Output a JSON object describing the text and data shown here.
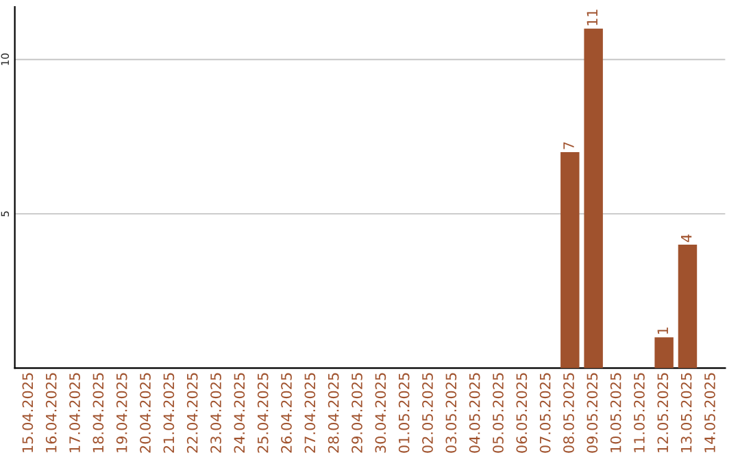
{
  "chart_data": {
    "type": "bar",
    "categories": [
      "15.04.2025",
      "16.04.2025",
      "17.04.2025",
      "18.04.2025",
      "19.04.2025",
      "20.04.2025",
      "21.04.2025",
      "22.04.2025",
      "23.04.2025",
      "24.04.2025",
      "25.04.2025",
      "26.04.2025",
      "27.04.2025",
      "28.04.2025",
      "29.04.2025",
      "30.04.2025",
      "01.05.2025",
      "02.05.2025",
      "03.05.2025",
      "04.05.2025",
      "05.05.2025",
      "06.05.2025",
      "07.05.2025",
      "08.05.2025",
      "09.05.2025",
      "10.05.2025",
      "11.05.2025",
      "12.05.2025",
      "13.05.2025",
      "14.05.2025"
    ],
    "values": [
      0,
      0,
      0,
      0,
      0,
      0,
      0,
      0,
      0,
      0,
      0,
      0,
      0,
      0,
      0,
      0,
      0,
      0,
      0,
      0,
      0,
      0,
      0,
      7,
      11,
      0,
      0,
      1,
      4,
      0
    ],
    "value_labels": [
      null,
      null,
      null,
      null,
      null,
      null,
      null,
      null,
      null,
      null,
      null,
      null,
      null,
      null,
      null,
      null,
      null,
      null,
      null,
      null,
      null,
      null,
      null,
      "7",
      "11",
      null,
      null,
      "1",
      "4",
      null
    ],
    "color": "#a0522d",
    "ylim": [
      0,
      11.7
    ],
    "yticks": [
      5,
      10
    ],
    "grid": "y",
    "legend": false
  }
}
